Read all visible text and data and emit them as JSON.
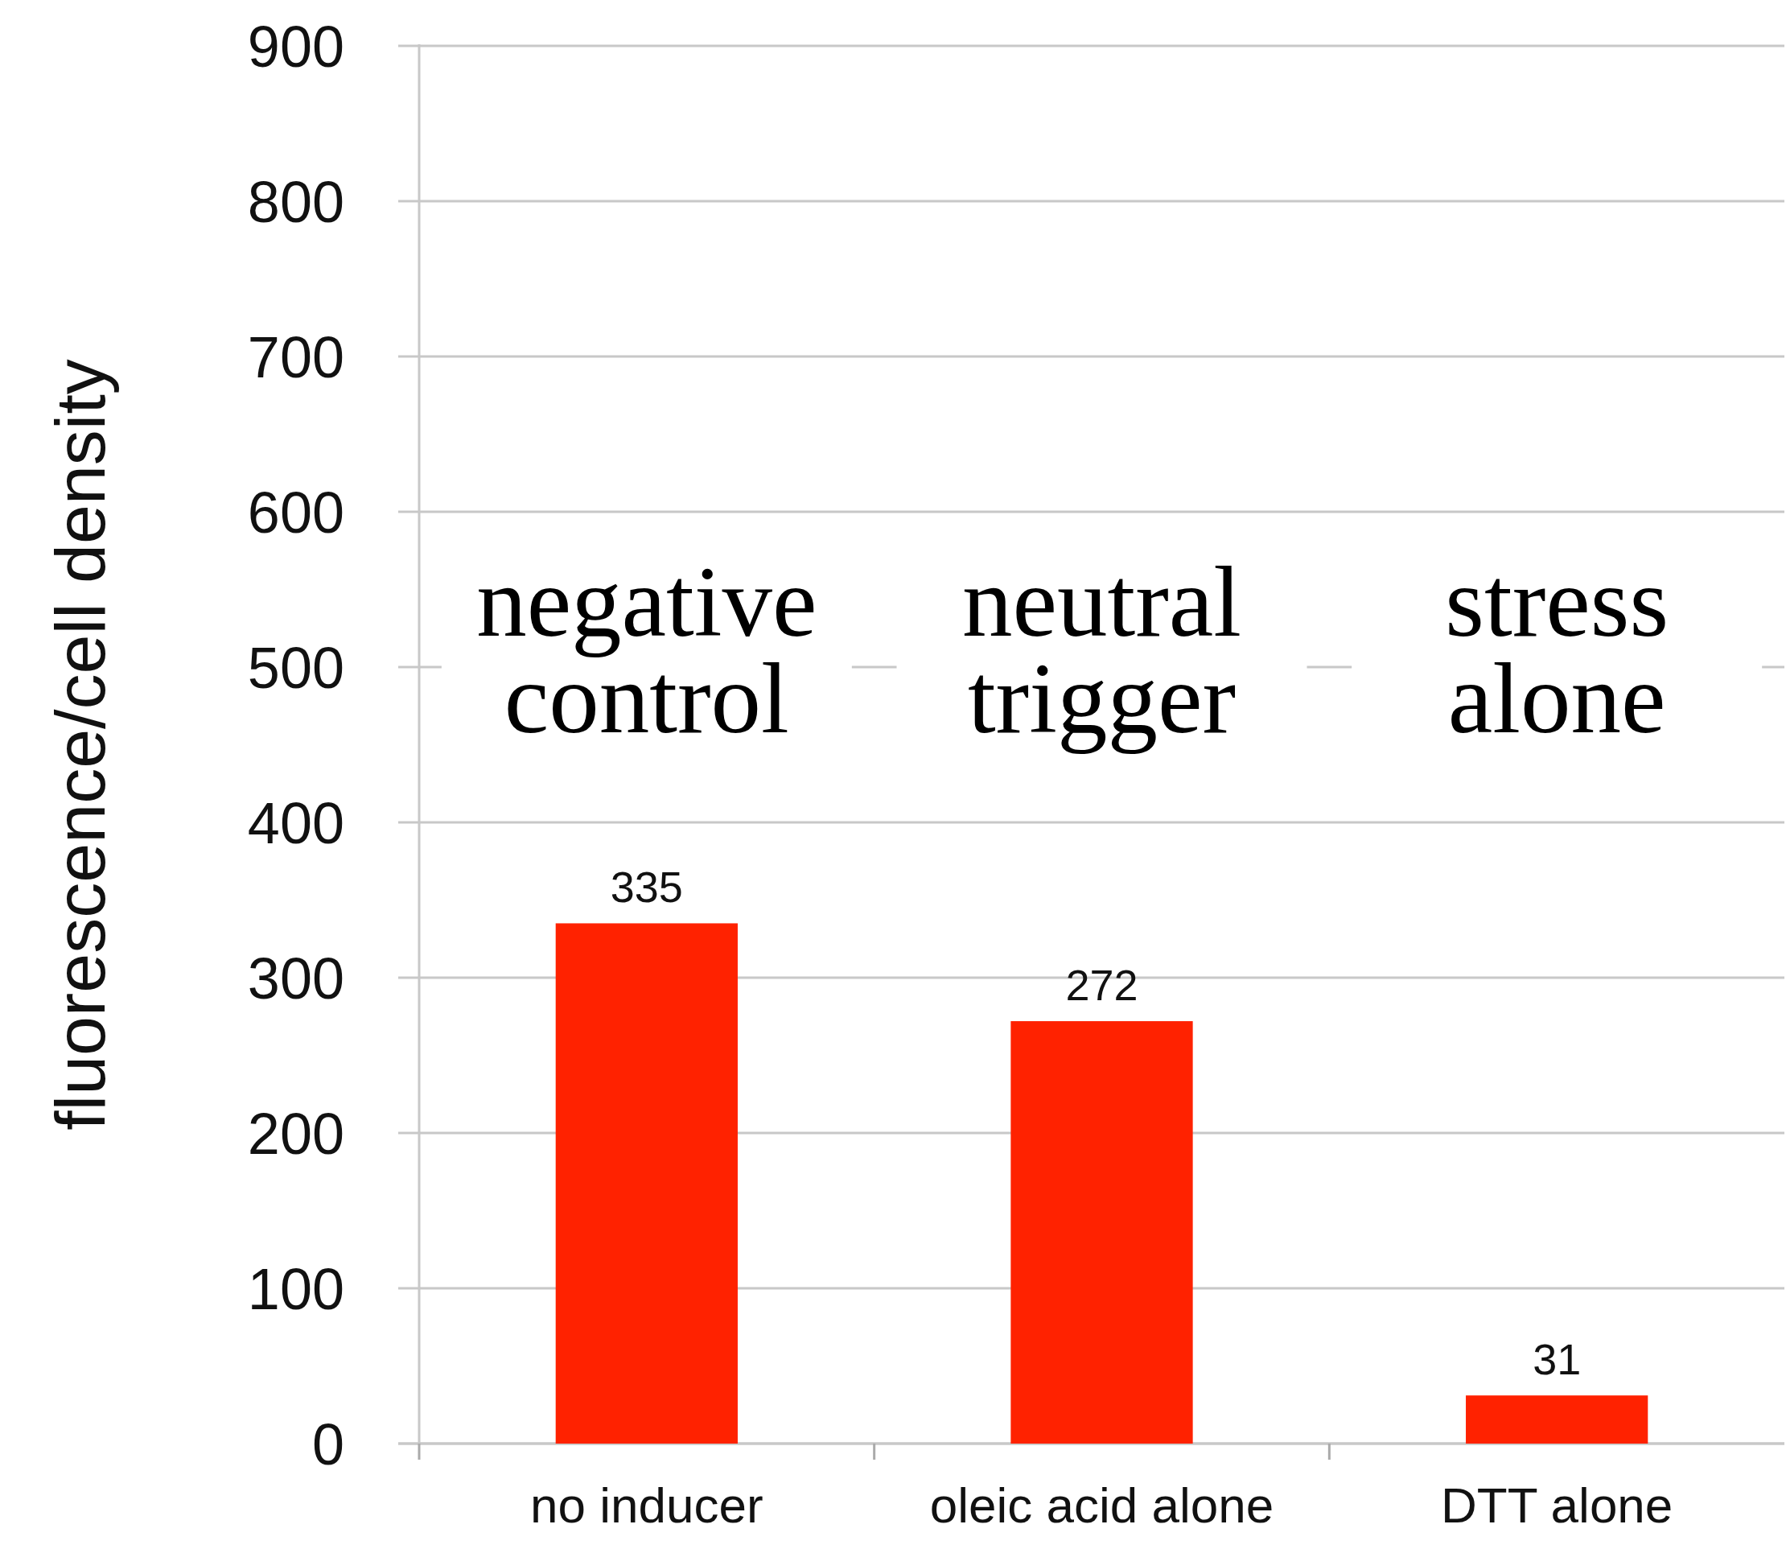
{
  "chart_data": {
    "type": "bar",
    "ylabel": "fluorescence/cell density",
    "categories": [
      "no inducer",
      "oleic acid alone",
      "DTT alone"
    ],
    "values": [
      335,
      272,
      31
    ],
    "color": "#ff2200",
    "ylim": [
      0,
      900
    ],
    "yticks": [
      0,
      100,
      200,
      300,
      400,
      500,
      600,
      700,
      800,
      900
    ],
    "grid": "y",
    "data_labels": true,
    "annotations": [
      "negative control",
      "neutral trigger",
      "stress alone"
    ]
  }
}
